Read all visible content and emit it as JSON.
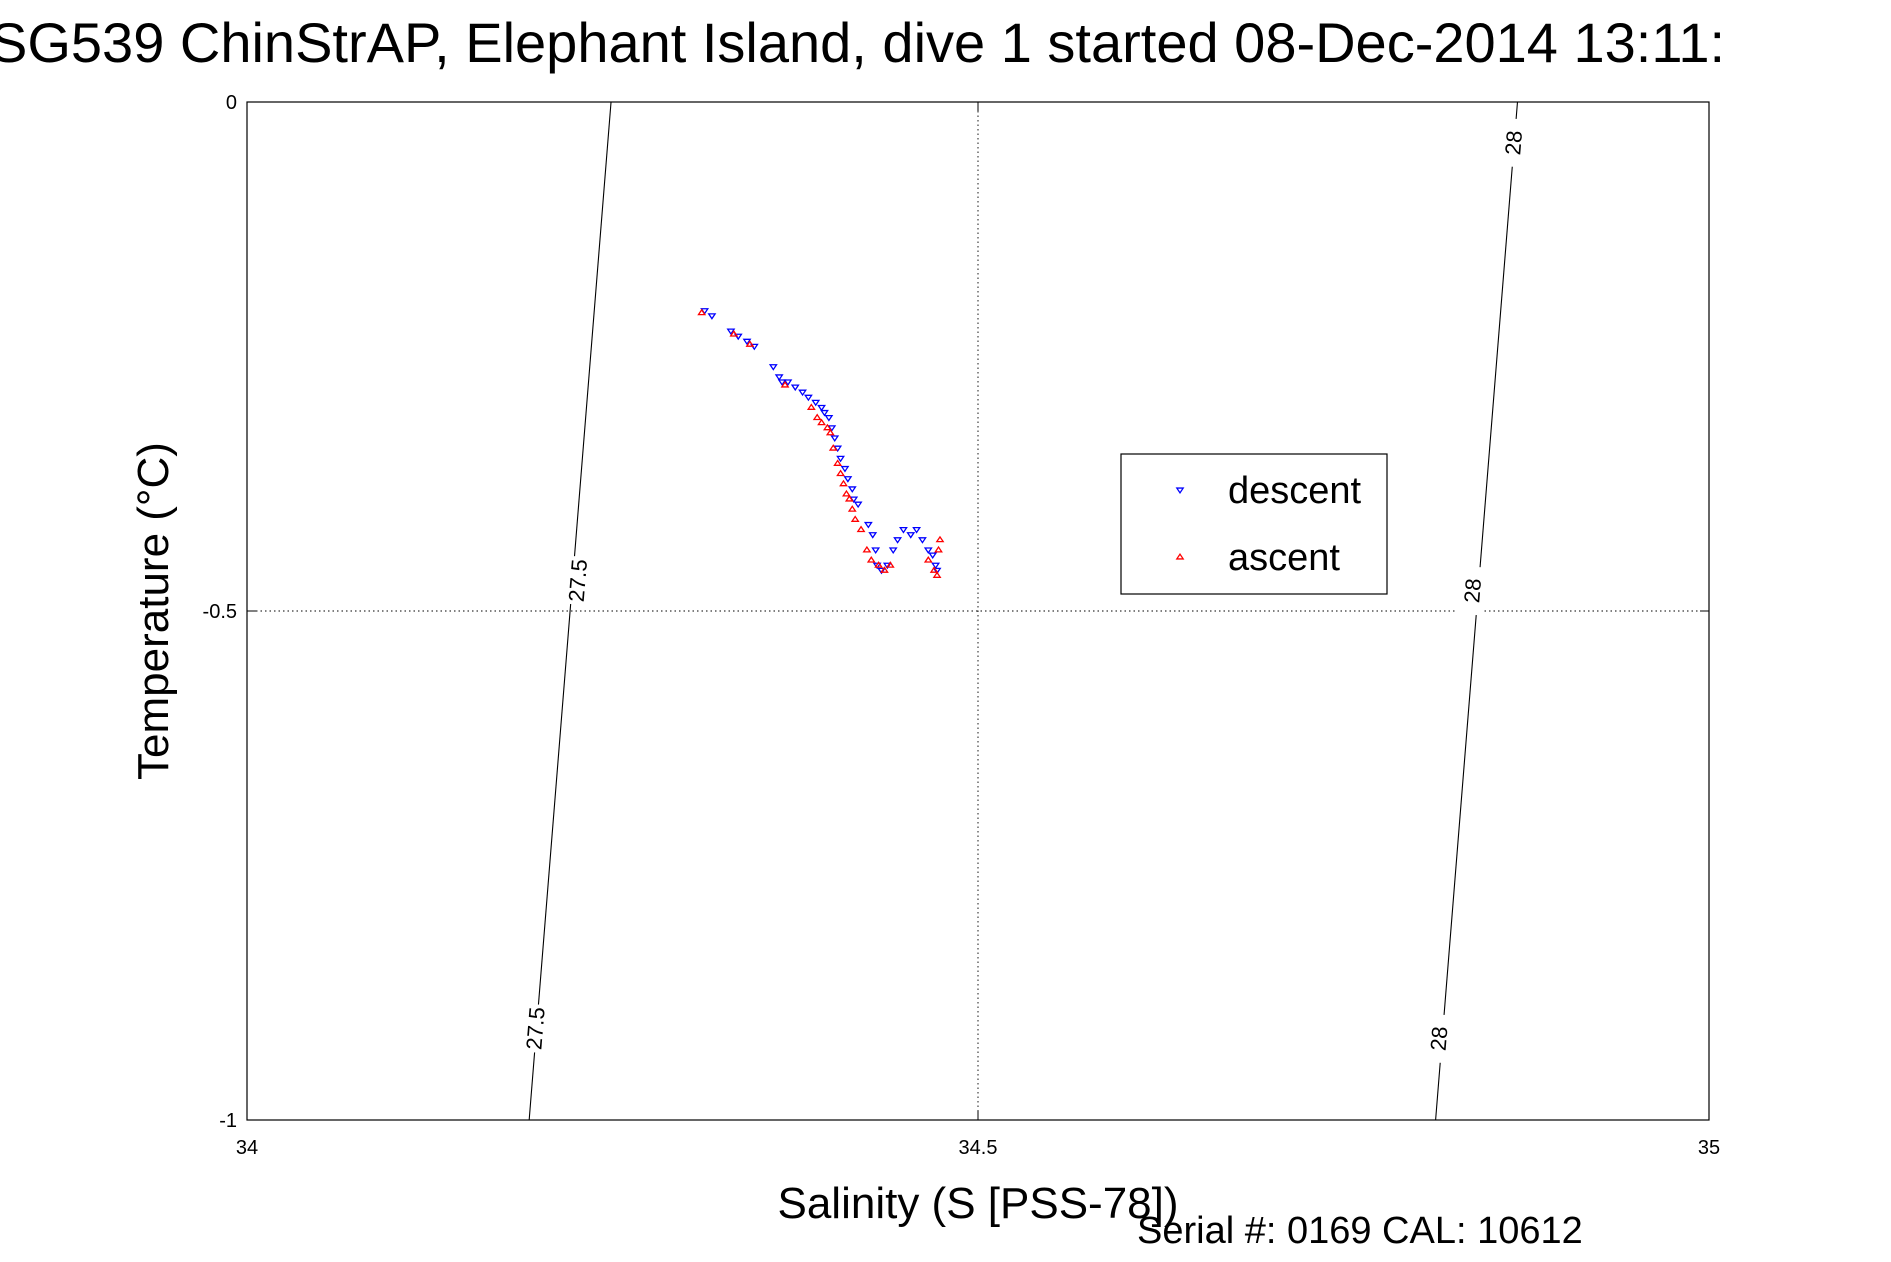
{
  "chart_data": {
    "type": "scatter",
    "title": "SG539 ChinStrAP, Elephant Island, dive 1 started 08-Dec-2014 13:11:",
    "xlabel": "Salinity (S [PSS-78])",
    "ylabel": "Temperature (°C)",
    "xlim": [
      34,
      35
    ],
    "ylim": [
      -1,
      0
    ],
    "xticks": [
      34,
      34.5,
      35
    ],
    "xtick_labels": [
      "34",
      "34.5",
      "35"
    ],
    "yticks": [
      0,
      -0.5,
      -1
    ],
    "ytick_labels": [
      "0",
      "-0.5",
      "-1"
    ],
    "grid": true,
    "legend_position": "right",
    "footer": "Serial #: 0169 CAL: 10612",
    "contours": [
      {
        "label": "27.5",
        "points": [
          [
            34.249,
            0
          ],
          [
            34.193,
            -1
          ]
        ],
        "label_positions": [
          [
            34.226,
            -0.47
          ],
          [
            34.197,
            -0.91
          ]
        ]
      },
      {
        "label": "28",
        "points": [
          [
            34.869,
            0
          ],
          [
            34.813,
            -1
          ]
        ],
        "label_positions": [
          [
            34.866,
            -0.04
          ],
          [
            34.838,
            -0.48
          ],
          [
            34.815,
            -0.92
          ]
        ]
      }
    ],
    "series": [
      {
        "name": "descent",
        "color": "#0000ff",
        "marker": "triangle-down",
        "points": [
          [
            34.313,
            -0.205
          ],
          [
            34.318,
            -0.21
          ],
          [
            34.331,
            -0.225
          ],
          [
            34.336,
            -0.23
          ],
          [
            34.342,
            -0.235
          ],
          [
            34.347,
            -0.24
          ],
          [
            34.36,
            -0.26
          ],
          [
            34.364,
            -0.27
          ],
          [
            34.366,
            -0.275
          ],
          [
            34.37,
            -0.275
          ],
          [
            34.375,
            -0.28
          ],
          [
            34.38,
            -0.285
          ],
          [
            34.384,
            -0.29
          ],
          [
            34.389,
            -0.295
          ],
          [
            34.393,
            -0.3
          ],
          [
            34.395,
            -0.305
          ],
          [
            34.398,
            -0.31
          ],
          [
            34.4,
            -0.32
          ],
          [
            34.402,
            -0.33
          ],
          [
            34.404,
            -0.34
          ],
          [
            34.406,
            -0.35
          ],
          [
            34.409,
            -0.36
          ],
          [
            34.411,
            -0.37
          ],
          [
            34.414,
            -0.38
          ],
          [
            34.415,
            -0.39
          ],
          [
            34.418,
            -0.395
          ],
          [
            34.425,
            -0.415
          ],
          [
            34.428,
            -0.425
          ],
          [
            34.43,
            -0.44
          ],
          [
            34.431,
            -0.455
          ],
          [
            34.434,
            -0.46
          ],
          [
            34.438,
            -0.455
          ],
          [
            34.442,
            -0.44
          ],
          [
            34.445,
            -0.43
          ],
          [
            34.449,
            -0.42
          ],
          [
            34.454,
            -0.425
          ],
          [
            34.458,
            -0.42
          ],
          [
            34.462,
            -0.43
          ],
          [
            34.466,
            -0.44
          ],
          [
            34.469,
            -0.445
          ],
          [
            34.471,
            -0.455
          ],
          [
            34.472,
            -0.46
          ]
        ]
      },
      {
        "name": "ascent",
        "color": "#ff0000",
        "marker": "triangle-up",
        "points": [
          [
            34.311,
            -0.207
          ],
          [
            34.333,
            -0.228
          ],
          [
            34.344,
            -0.238
          ],
          [
            34.368,
            -0.278
          ],
          [
            34.386,
            -0.3
          ],
          [
            34.39,
            -0.31
          ],
          [
            34.393,
            -0.315
          ],
          [
            34.397,
            -0.32
          ],
          [
            34.399,
            -0.325
          ],
          [
            34.401,
            -0.34
          ],
          [
            34.404,
            -0.355
          ],
          [
            34.406,
            -0.365
          ],
          [
            34.408,
            -0.375
          ],
          [
            34.41,
            -0.385
          ],
          [
            34.412,
            -0.39
          ],
          [
            34.414,
            -0.4
          ],
          [
            34.416,
            -0.41
          ],
          [
            34.42,
            -0.42
          ],
          [
            34.424,
            -0.44
          ],
          [
            34.427,
            -0.45
          ],
          [
            34.432,
            -0.455
          ],
          [
            34.436,
            -0.46
          ],
          [
            34.44,
            -0.455
          ],
          [
            34.466,
            -0.45
          ],
          [
            34.47,
            -0.46
          ],
          [
            34.472,
            -0.465
          ],
          [
            34.473,
            -0.44
          ],
          [
            34.474,
            -0.43
          ]
        ]
      }
    ]
  }
}
